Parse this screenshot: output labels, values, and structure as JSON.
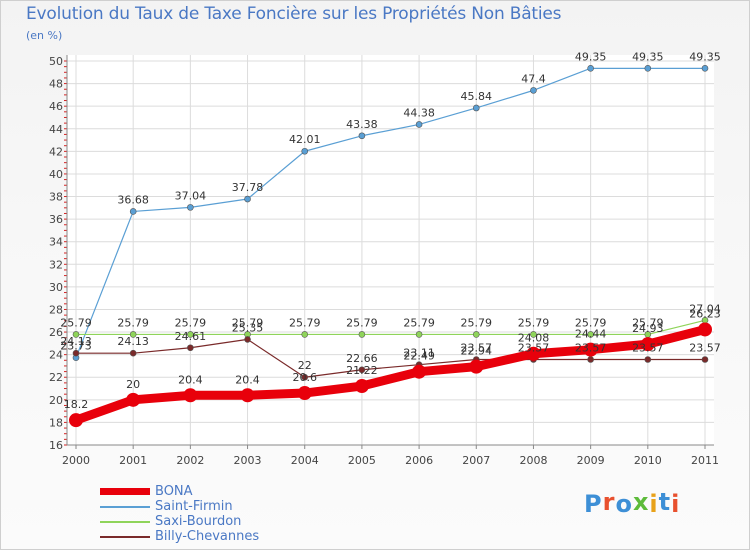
{
  "title": "Evolution du Taux de Taxe Foncière sur les Propriétés Non Bâties",
  "unit": "(en %)",
  "logo": {
    "text": "Proxiti",
    "letter_colors": [
      "#3d8fd6",
      "#e8502e",
      "#3d8fd6",
      "#5dbb3a",
      "#e8a21a",
      "#3d8fd6",
      "#e8502e"
    ]
  },
  "chart_data": {
    "type": "line",
    "x": [
      "2000",
      "2001",
      "2002",
      "2003",
      "2004",
      "2005",
      "2006",
      "2007",
      "2008",
      "2009",
      "2010",
      "2011"
    ],
    "ylim": [
      16,
      50
    ],
    "yticks": [
      16,
      18,
      20,
      22,
      24,
      26,
      28,
      30,
      32,
      34,
      36,
      38,
      40,
      42,
      44,
      46,
      48,
      50
    ],
    "grid": true,
    "legend_position": "bottom-left",
    "series": [
      {
        "name": "BONA",
        "color": "#e8000b",
        "values": [
          18.2,
          20,
          20.4,
          20.4,
          20.6,
          21.22,
          22.49,
          22.94,
          24.08,
          24.44,
          24.93,
          26.23
        ],
        "labels": [
          "18.2",
          "20",
          "20.4",
          "20.4",
          "20.6",
          "21.22",
          "22.49",
          "22.94",
          "24.08",
          "24.44",
          "24.93",
          "26.23"
        ]
      },
      {
        "name": "Saint-Firmin",
        "color": "#5a9fd4",
        "values": [
          23.73,
          36.68,
          37.04,
          37.78,
          42.01,
          43.38,
          44.38,
          45.84,
          47.4,
          49.35,
          49.35,
          49.35
        ],
        "labels": [
          "23.73",
          "36.68",
          "37.04",
          "37.78",
          "42.01",
          "43.38",
          "44.38",
          "45.84",
          "47.4",
          "49.35",
          "49.35",
          "49.35"
        ]
      },
      {
        "name": "Saxi-Bourdon",
        "color": "#8fd45a",
        "values": [
          25.79,
          25.79,
          25.79,
          25.79,
          25.79,
          25.79,
          25.79,
          25.79,
          25.79,
          25.79,
          25.79,
          27.04
        ],
        "labels": [
          "25.79",
          "25.79",
          "25.79",
          "25.79",
          "25.79",
          "25.79",
          "25.79",
          "25.79",
          "25.79",
          "25.79",
          "25.79",
          "27.04"
        ]
      },
      {
        "name": "Billy-Chevannes",
        "color": "#7a2a2a",
        "values": [
          24.13,
          24.13,
          24.61,
          25.35,
          22,
          22.66,
          23.11,
          23.57,
          23.57,
          23.57,
          23.57,
          23.57
        ],
        "labels": [
          "24.13",
          "24.13",
          "24.61",
          "25.35",
          "22",
          "22.66",
          "23.11",
          "23.57",
          "23.57",
          "23.57",
          "23.57",
          "23.57"
        ]
      }
    ]
  }
}
